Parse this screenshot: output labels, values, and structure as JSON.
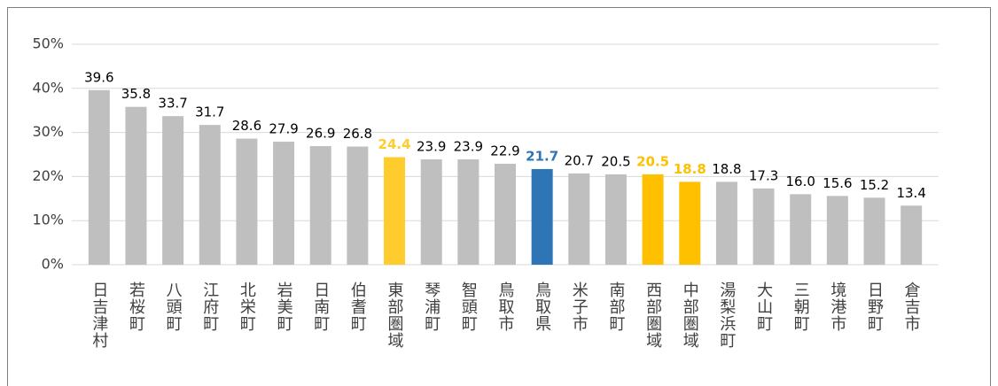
{
  "chart_data": {
    "type": "bar",
    "categories": [
      "日吉津村",
      "若桜町",
      "八頭町",
      "江府町",
      "北栄町",
      "岩美町",
      "日南町",
      "伯耆町",
      "東部圏域",
      "琴浦町",
      "智頭町",
      "鳥取市",
      "鳥取県",
      "米子市",
      "南部町",
      "西部圏域",
      "中部圏域",
      "湯梨浜町",
      "大山町",
      "三朝町",
      "境港市",
      "日野町",
      "倉吉市"
    ],
    "values": [
      39.6,
      35.8,
      33.7,
      31.7,
      28.6,
      27.9,
      26.9,
      26.8,
      24.4,
      23.9,
      23.9,
      22.9,
      21.7,
      20.7,
      20.5,
      20.5,
      18.8,
      18.8,
      17.3,
      16.0,
      15.6,
      15.2,
      13.4
    ],
    "value_labels": [
      "39.6",
      "35.8",
      "33.7",
      "31.7",
      "28.6",
      "27.9",
      "26.9",
      "26.8",
      "24.4",
      "23.9",
      "23.9",
      "22.9",
      "21.7",
      "20.7",
      "20.5",
      "20.5",
      "18.8",
      "18.8",
      "17.3",
      "16.0",
      "15.6",
      "15.2",
      "13.4"
    ],
    "colors": [
      "#bfbfbf",
      "#bfbfbf",
      "#bfbfbf",
      "#bfbfbf",
      "#bfbfbf",
      "#bfbfbf",
      "#bfbfbf",
      "#bfbfbf",
      "#ffcc2e",
      "#bfbfbf",
      "#bfbfbf",
      "#bfbfbf",
      "#2e75b6",
      "#bfbfbf",
      "#bfbfbf",
      "#ffc000",
      "#ffc000",
      "#bfbfbf",
      "#bfbfbf",
      "#bfbfbf",
      "#bfbfbf",
      "#bfbfbf",
      "#bfbfbf"
    ],
    "ylim": [
      0,
      50
    ],
    "yticks": [
      {
        "value": 0,
        "label": "0%"
      },
      {
        "value": 10,
        "label": "10%"
      },
      {
        "value": 20,
        "label": "20%"
      },
      {
        "value": 30,
        "label": "30%"
      },
      {
        "value": 40,
        "label": "40%"
      },
      {
        "value": 50,
        "label": "50%"
      }
    ],
    "grid": true
  }
}
